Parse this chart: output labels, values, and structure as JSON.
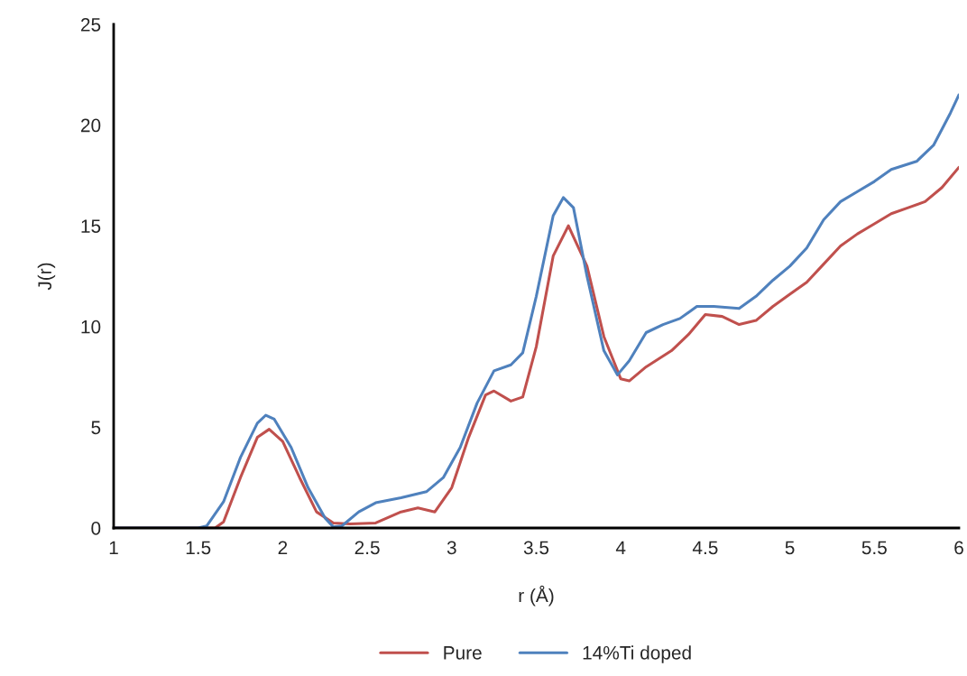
{
  "chart_data": {
    "type": "line",
    "xlabel": "r (Å)",
    "ylabel": "J(r)",
    "xlim": [
      1,
      6
    ],
    "xticks": [
      1,
      1.5,
      2,
      2.5,
      3,
      3.5,
      4,
      4.5,
      5,
      5.5,
      6
    ],
    "ylim": [
      0,
      25
    ],
    "yticks": [
      0,
      5,
      10,
      15,
      20,
      25
    ],
    "grid": false,
    "legend": "bottom",
    "marker": "none",
    "line_style": "solid",
    "series": [
      {
        "name": "Pure",
        "color": "#c0504d",
        "x": [
          1.0,
          1.5,
          1.6,
          1.65,
          1.75,
          1.85,
          1.92,
          2.0,
          2.1,
          2.2,
          2.3,
          2.4,
          2.55,
          2.7,
          2.8,
          2.9,
          3.0,
          3.1,
          3.2,
          3.25,
          3.35,
          3.42,
          3.5,
          3.6,
          3.69,
          3.8,
          3.9,
          4.0,
          4.05,
          4.15,
          4.3,
          4.4,
          4.5,
          4.6,
          4.7,
          4.8,
          4.9,
          5.0,
          5.1,
          5.2,
          5.3,
          5.4,
          5.5,
          5.6,
          5.7,
          5.8,
          5.9,
          6.0
        ],
        "values": [
          0,
          0,
          0,
          0.3,
          2.5,
          4.5,
          4.9,
          4.3,
          2.5,
          0.8,
          0.25,
          0.2,
          0.25,
          0.8,
          1.0,
          0.8,
          2.0,
          4.5,
          6.6,
          6.8,
          6.3,
          6.5,
          9,
          13.5,
          15.0,
          13,
          9.5,
          7.4,
          7.3,
          8,
          8.8,
          9.6,
          10.6,
          10.5,
          10.1,
          10.3,
          11,
          11.6,
          12.2,
          13.1,
          14.0,
          14.6,
          15.1,
          15.6,
          15.9,
          16.2,
          16.9,
          17.9
        ]
      },
      {
        "name": "14%Ti doped",
        "color": "#4f81bd",
        "x": [
          1.0,
          1.5,
          1.55,
          1.65,
          1.75,
          1.85,
          1.9,
          1.95,
          2.05,
          2.15,
          2.25,
          2.3,
          2.35,
          2.45,
          2.55,
          2.7,
          2.85,
          2.95,
          3.05,
          3.15,
          3.25,
          3.35,
          3.42,
          3.5,
          3.6,
          3.66,
          3.72,
          3.8,
          3.9,
          3.98,
          4.05,
          4.15,
          4.25,
          4.35,
          4.45,
          4.55,
          4.7,
          4.8,
          4.9,
          5.0,
          5.1,
          5.2,
          5.3,
          5.4,
          5.5,
          5.6,
          5.75,
          5.85,
          5.95,
          6.0
        ],
        "values": [
          0,
          0,
          0.1,
          1.3,
          3.5,
          5.2,
          5.6,
          5.4,
          4,
          2.0,
          0.5,
          0.05,
          0.1,
          0.8,
          1.25,
          1.5,
          1.8,
          2.5,
          4.0,
          6.2,
          7.8,
          8.1,
          8.7,
          11.5,
          15.5,
          16.4,
          15.9,
          12.5,
          8.8,
          7.6,
          8.3,
          9.7,
          10.1,
          10.4,
          11.0,
          11.0,
          10.9,
          11.5,
          12.3,
          13.0,
          13.9,
          15.3,
          16.2,
          16.7,
          17.2,
          17.8,
          18.2,
          19,
          20.6,
          21.5
        ]
      }
    ]
  }
}
